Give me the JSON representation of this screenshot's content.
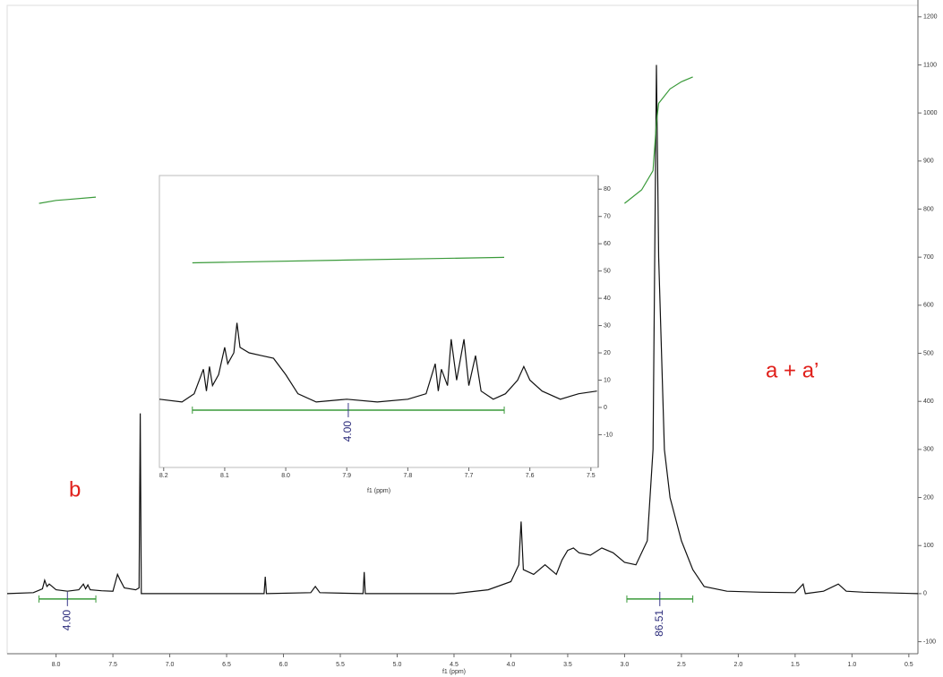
{
  "chart_data": [
    {
      "type": "line",
      "x_label": "f1 (ppm)",
      "xlim": [
        8.43,
        0.42
      ],
      "ylim": [
        -125,
        1235
      ],
      "xticks": [
        {
          "value": 8,
          "label": "8.0"
        },
        7.5,
        {
          "value": 7,
          "label": "7.0"
        },
        6.5,
        {
          "value": 6,
          "label": "6.0"
        },
        5.5,
        {
          "value": 5,
          "label": "5.0"
        },
        4.5,
        {
          "value": 4,
          "label": "4.0"
        },
        3.5,
        {
          "value": 3,
          "label": "3.0"
        },
        2.5,
        {
          "value": 2,
          "label": "2.0"
        },
        1.5,
        {
          "value": 1,
          "label": "1.0"
        },
        0.5
      ],
      "yticks": [
        -100,
        0,
        100,
        200,
        300,
        400,
        500,
        600,
        700,
        800,
        900,
        1000,
        1100,
        1200
      ],
      "x": [
        8.43,
        8.2,
        8.12,
        8.1,
        8.08,
        8.06,
        8.0,
        7.9,
        7.8,
        7.76,
        7.74,
        7.72,
        7.7,
        7.6,
        7.5,
        7.46,
        7.44,
        7.4,
        7.3,
        7.27,
        7.26,
        7.25,
        7.0,
        6.5,
        6.17,
        6.16,
        6.15,
        5.76,
        5.72,
        5.68,
        5.3,
        5.29,
        5.28,
        4.5,
        4.2,
        4.0,
        3.93,
        3.91,
        3.89,
        3.8,
        3.7,
        3.6,
        3.55,
        3.5,
        3.45,
        3.4,
        3.3,
        3.2,
        3.1,
        3.0,
        2.9,
        2.8,
        2.75,
        2.72,
        2.7,
        2.65,
        2.6,
        2.5,
        2.4,
        2.3,
        2.1,
        1.8,
        1.5,
        1.43,
        1.41,
        1.25,
        1.12,
        1.05,
        0.9,
        0.42
      ],
      "series": [
        {
          "color": "#111111",
          "values": [
            0,
            2,
            10,
            28,
            15,
            20,
            8,
            5,
            8,
            20,
            10,
            18,
            8,
            6,
            5,
            40,
            30,
            12,
            8,
            12,
            375,
            0,
            0,
            0,
            0,
            35,
            0,
            2,
            15,
            2,
            0,
            45,
            0,
            0,
            8,
            25,
            60,
            150,
            50,
            40,
            60,
            40,
            70,
            90,
            95,
            85,
            80,
            95,
            85,
            65,
            60,
            110,
            300,
            1100,
            700,
            300,
            200,
            110,
            50,
            15,
            5,
            3,
            2,
            20,
            0,
            5,
            20,
            5,
            3,
            0
          ]
        }
      ],
      "integral_curves": [
        {
          "color": "#3a9a3a",
          "x": [
            8.15,
            8.0,
            7.9,
            7.65
          ],
          "values": [
            812,
            818,
            820,
            825
          ]
        },
        {
          "color": "#3a9a3a",
          "x": [
            3.0,
            2.85,
            2.75,
            2.72,
            2.7,
            2.6,
            2.5,
            2.4
          ],
          "values": [
            812,
            840,
            880,
            980,
            1020,
            1050,
            1065,
            1075
          ]
        }
      ],
      "integrals": [
        {
          "label": "4.00",
          "from": 8.15,
          "to": 7.65
        },
        {
          "label": "86.51",
          "from": 2.98,
          "to": 2.4
        }
      ],
      "annotations": [
        {
          "text": "b",
          "color": "#e0201b"
        },
        {
          "text": "a + a’",
          "color": "#e0201b"
        }
      ]
    },
    {
      "type": "line",
      "x_label": "f1 (ppm)",
      "xlim": [
        8.207,
        7.488
      ],
      "ylim": [
        -22,
        85
      ],
      "xticks": [
        8.2,
        8.1,
        {
          "value": 8,
          "label": "8.0"
        },
        7.9,
        7.8,
        7.7,
        7.6,
        7.5
      ],
      "yticks": [
        -10,
        0,
        10,
        20,
        30,
        40,
        50,
        60,
        70,
        80
      ],
      "x": [
        8.207,
        8.17,
        8.15,
        8.135,
        8.13,
        8.125,
        8.12,
        8.11,
        8.1,
        8.095,
        8.085,
        8.08,
        8.075,
        8.06,
        8.04,
        8.02,
        8.0,
        7.98,
        7.95,
        7.9,
        7.85,
        7.8,
        7.77,
        7.755,
        7.75,
        7.745,
        7.735,
        7.729,
        7.72,
        7.708,
        7.7,
        7.689,
        7.68,
        7.66,
        7.64,
        7.62,
        7.61,
        7.6,
        7.58,
        7.55,
        7.52,
        7.49
      ],
      "series": [
        {
          "color": "#111111",
          "values": [
            3,
            2,
            5,
            14,
            6,
            15,
            8,
            12,
            22,
            16,
            20,
            31,
            22,
            20,
            19,
            18,
            12,
            5,
            2,
            3,
            2,
            3,
            5,
            16,
            6,
            14,
            8,
            25,
            10,
            25,
            8,
            19,
            6,
            3,
            5,
            10,
            15,
            10,
            6,
            3,
            5,
            6
          ]
        }
      ],
      "integral_curves": [
        {
          "color": "#3a9a3a",
          "x": [
            8.153,
            7.9,
            7.642
          ],
          "values": [
            53,
            54,
            55
          ]
        }
      ],
      "integrals": [
        {
          "label": "4.00",
          "from": 8.153,
          "to": 7.642
        }
      ]
    }
  ]
}
